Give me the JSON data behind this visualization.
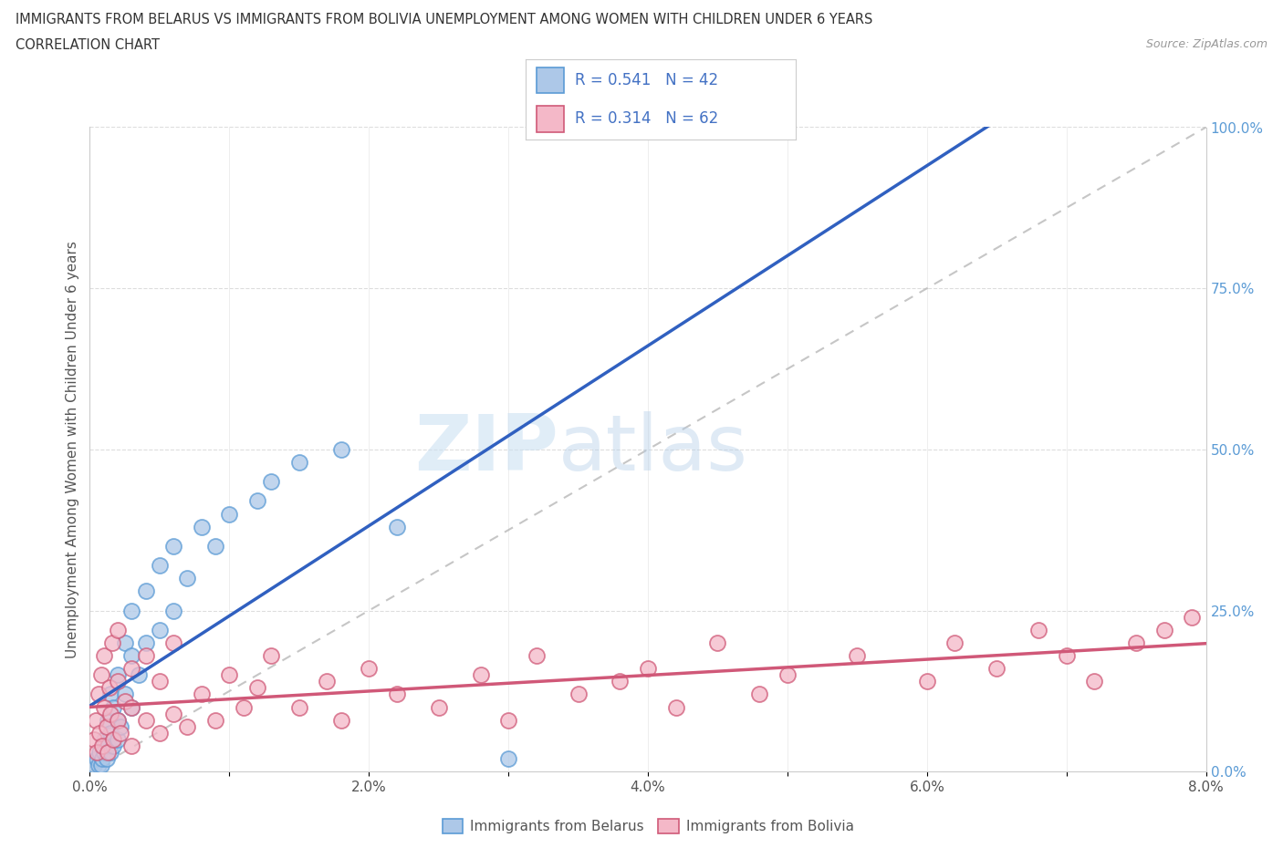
{
  "title_line1": "IMMIGRANTS FROM BELARUS VS IMMIGRANTS FROM BOLIVIA UNEMPLOYMENT AMONG WOMEN WITH CHILDREN UNDER 6 YEARS",
  "title_line2": "CORRELATION CHART",
  "source": "Source: ZipAtlas.com",
  "ylabel": "Unemployment Among Women with Children Under 6 years",
  "xlim": [
    0.0,
    0.08
  ],
  "ylim": [
    0.0,
    1.0
  ],
  "xtick_vals": [
    0.0,
    0.01,
    0.02,
    0.03,
    0.04,
    0.05,
    0.06,
    0.07,
    0.08
  ],
  "xticklabels": [
    "0.0%",
    "",
    "2.0%",
    "",
    "4.0%",
    "",
    "6.0%",
    "",
    "8.0%"
  ],
  "yticks_right": [
    0.0,
    0.25,
    0.5,
    0.75,
    1.0
  ],
  "ytick_right_labels": [
    "0.0%",
    "25.0%",
    "50.0%",
    "75.0%",
    "100.0%"
  ],
  "belarus_color": "#adc8e8",
  "belarus_edge": "#5b9bd5",
  "bolivia_color": "#f4b8c8",
  "bolivia_edge": "#d05a78",
  "belarus_line_color": "#3060c0",
  "bolivia_line_color": "#d05878",
  "diag_line_color": "#b8b8b8",
  "R_belarus": 0.541,
  "N_belarus": 42,
  "R_bolivia": 0.314,
  "N_bolivia": 62,
  "legend_text_color": "#4472c4",
  "watermark_zip": "ZIP",
  "watermark_atlas": "atlas",
  "background_color": "#ffffff",
  "belarus_x": [
    0.0003,
    0.0005,
    0.0006,
    0.0007,
    0.0008,
    0.0009,
    0.001,
    0.001,
    0.0012,
    0.0013,
    0.0013,
    0.0015,
    0.0015,
    0.0015,
    0.0017,
    0.0017,
    0.002,
    0.002,
    0.002,
    0.0022,
    0.0025,
    0.0025,
    0.003,
    0.003,
    0.003,
    0.0035,
    0.004,
    0.004,
    0.005,
    0.005,
    0.006,
    0.006,
    0.007,
    0.008,
    0.009,
    0.01,
    0.012,
    0.013,
    0.015,
    0.018,
    0.022,
    0.03
  ],
  "belarus_y": [
    0.01,
    0.02,
    0.01,
    0.03,
    0.01,
    0.02,
    0.03,
    0.05,
    0.02,
    0.04,
    0.08,
    0.03,
    0.06,
    0.12,
    0.04,
    0.1,
    0.05,
    0.08,
    0.15,
    0.07,
    0.12,
    0.2,
    0.1,
    0.18,
    0.25,
    0.15,
    0.2,
    0.28,
    0.22,
    0.32,
    0.25,
    0.35,
    0.3,
    0.38,
    0.35,
    0.4,
    0.42,
    0.45,
    0.48,
    0.5,
    0.38,
    0.02
  ],
  "bolivia_x": [
    0.0003,
    0.0004,
    0.0005,
    0.0006,
    0.0007,
    0.0008,
    0.0009,
    0.001,
    0.001,
    0.0012,
    0.0013,
    0.0014,
    0.0015,
    0.0016,
    0.0017,
    0.002,
    0.002,
    0.002,
    0.0022,
    0.0025,
    0.003,
    0.003,
    0.003,
    0.004,
    0.004,
    0.005,
    0.005,
    0.006,
    0.006,
    0.007,
    0.008,
    0.009,
    0.01,
    0.011,
    0.012,
    0.013,
    0.015,
    0.017,
    0.018,
    0.02,
    0.022,
    0.025,
    0.028,
    0.03,
    0.032,
    0.035,
    0.038,
    0.04,
    0.042,
    0.045,
    0.048,
    0.05,
    0.055,
    0.06,
    0.062,
    0.065,
    0.068,
    0.07,
    0.072,
    0.075,
    0.077,
    0.079
  ],
  "bolivia_y": [
    0.05,
    0.08,
    0.03,
    0.12,
    0.06,
    0.15,
    0.04,
    0.1,
    0.18,
    0.07,
    0.03,
    0.13,
    0.09,
    0.2,
    0.05,
    0.08,
    0.14,
    0.22,
    0.06,
    0.11,
    0.04,
    0.16,
    0.1,
    0.08,
    0.18,
    0.06,
    0.14,
    0.09,
    0.2,
    0.07,
    0.12,
    0.08,
    0.15,
    0.1,
    0.13,
    0.18,
    0.1,
    0.14,
    0.08,
    0.16,
    0.12,
    0.1,
    0.15,
    0.08,
    0.18,
    0.12,
    0.14,
    0.16,
    0.1,
    0.2,
    0.12,
    0.15,
    0.18,
    0.14,
    0.2,
    0.16,
    0.22,
    0.18,
    0.14,
    0.2,
    0.22,
    0.24
  ]
}
